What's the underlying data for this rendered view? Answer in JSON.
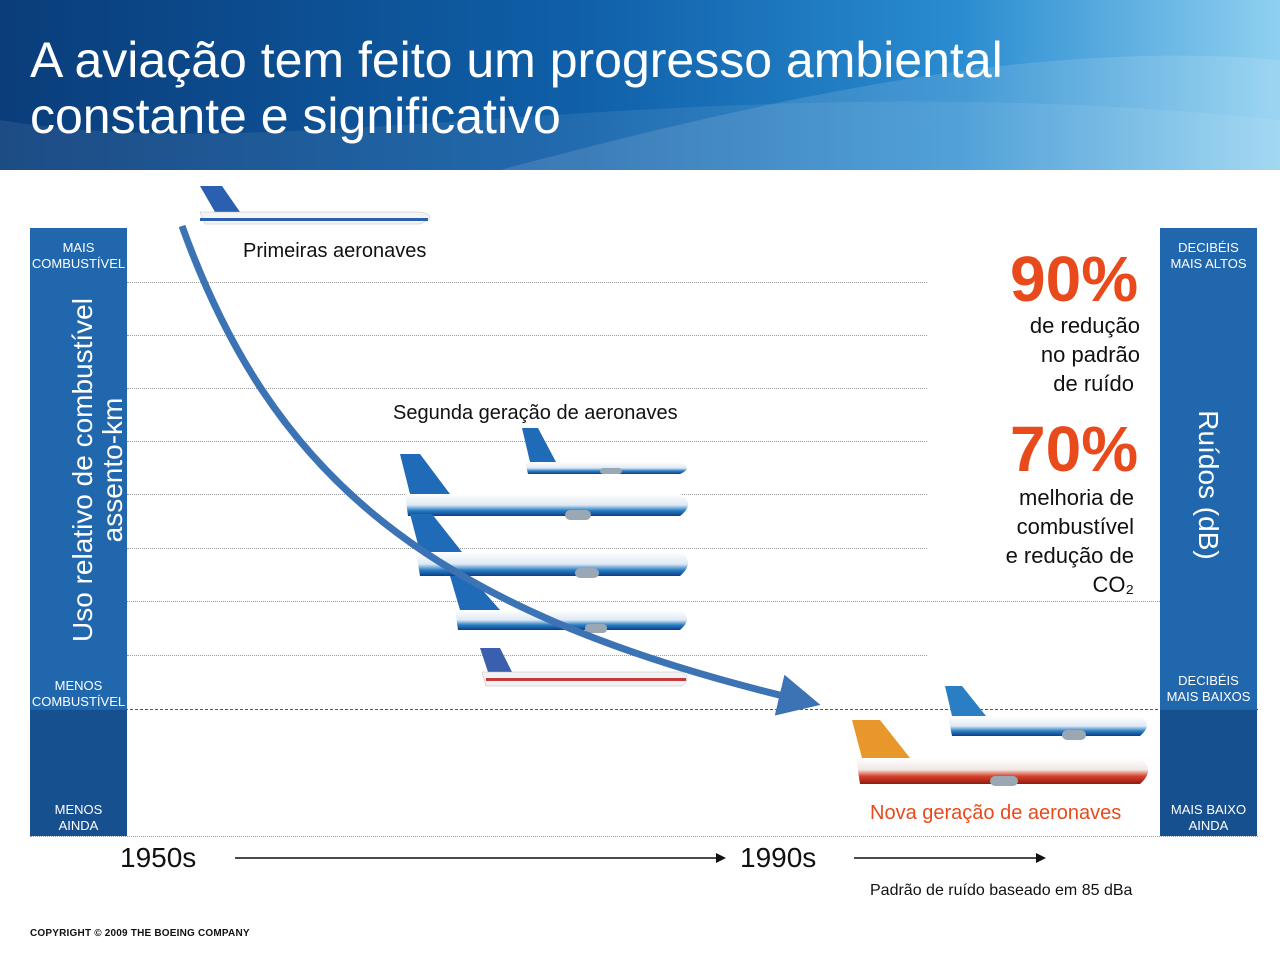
{
  "title": {
    "line1": "A aviação tem feito um progresso ambiental",
    "line2": "constante e significativo"
  },
  "left_axis": {
    "title_line1": "Uso relativo de combustível",
    "title_line2": "assento-km",
    "top_label_1": "MAIS",
    "top_label_2": "COMBUSTÍVEL",
    "mid_label_1": "MENOS",
    "mid_label_2": "COMBUSTÍVEL",
    "bottom_label_1": "MENOS",
    "bottom_label_2": "AINDA"
  },
  "right_axis": {
    "title": "Ruídos (dB)",
    "top_label_1": "DECIBÉIS",
    "top_label_2": "MAIS ALTOS",
    "mid_label_1": "DECIBÉIS",
    "mid_label_2": "MAIS BAIXOS",
    "bottom_label_1": "MAIS BAIXO",
    "bottom_label_2": "AINDA"
  },
  "groups": {
    "first": "Primeiras aeronaves",
    "second": "Segunda geração de aeronaves",
    "new": "Nova geração de aeronaves"
  },
  "stats": {
    "noise_pct": "90%",
    "noise_l1": "de redução",
    "noise_l2": "no padrão",
    "noise_l3": "de ruído",
    "fuel_pct": "70%",
    "fuel_l1": "melhoria de",
    "fuel_l2": "combustível",
    "fuel_l3": "e redução de",
    "fuel_l4": "CO₂"
  },
  "timeline": {
    "start": "1950s",
    "end": "1990s",
    "note": "Padrão de ruído baseado em 85 dBa"
  },
  "copyright": "COPYRIGHT © 2009 THE BOEING COMPANY",
  "colors": {
    "accent": "#e84a1c",
    "axis_blue": "#2067ad",
    "arrow_blue": "#3b73b4"
  }
}
